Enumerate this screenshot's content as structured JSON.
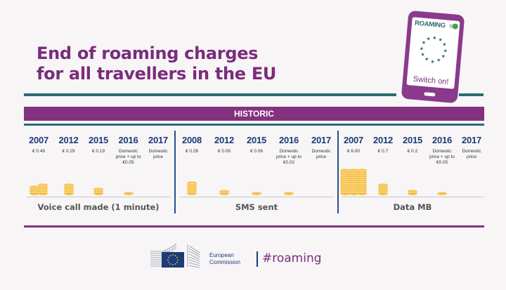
{
  "title": {
    "line1": "End of roaming charges",
    "line2": "for all travellers in the EU"
  },
  "phone": {
    "status_label": "ROAMING",
    "toggle_state": "on",
    "caption": "Switch on!"
  },
  "section_header": "HISTORIC",
  "panels": [
    {
      "label": "Voice call made (1 minute)",
      "entries": [
        {
          "year": "2007",
          "price": "€ 0.49",
          "coins": [
            4,
            5
          ]
        },
        {
          "year": "2012",
          "price": "€ 0.29",
          "coins": [
            5
          ]
        },
        {
          "year": "2015",
          "price": "€ 0.19",
          "coins": [
            3
          ]
        },
        {
          "year": "2016",
          "price": "Domestic price + up to €0.05",
          "coins": [
            1
          ]
        },
        {
          "year": "2017",
          "price": "Domestic price",
          "coins": []
        }
      ]
    },
    {
      "label": "SMS sent",
      "entries": [
        {
          "year": "2008",
          "price": "€ 0.28",
          "coins": [
            6
          ]
        },
        {
          "year": "2012",
          "price": "€ 0.09",
          "coins": [
            2
          ]
        },
        {
          "year": "2015",
          "price": "€ 0.06",
          "coins": [
            1
          ]
        },
        {
          "year": "2016",
          "price": "Domestic price + up to €0.02",
          "coins": [
            1
          ]
        },
        {
          "year": "2017",
          "price": "Domestic price",
          "coins": []
        }
      ]
    },
    {
      "label": "Data MB",
      "entries": [
        {
          "year": "2007",
          "price": "€ 6.00",
          "coins": [
            12,
            12,
            12
          ]
        },
        {
          "year": "2012",
          "price": "€ 0.7",
          "coins": [
            5
          ]
        },
        {
          "year": "2015",
          "price": "€ 0.2",
          "coins": [
            2
          ]
        },
        {
          "year": "2016",
          "price": "Domestic price + up to €0.05",
          "coins": [
            1
          ]
        },
        {
          "year": "2017",
          "price": "Domestic price",
          "coins": []
        }
      ]
    }
  ],
  "footer": {
    "org_line1": "European",
    "org_line2": "Commission",
    "hashtag": "#roaming"
  },
  "colors": {
    "purple": "#84317f",
    "title_purple": "#7a2c7b",
    "teal": "#2a6b76",
    "navy": "#1e3a78",
    "coin": "#f5bf45",
    "background": "#f7f5f6"
  }
}
